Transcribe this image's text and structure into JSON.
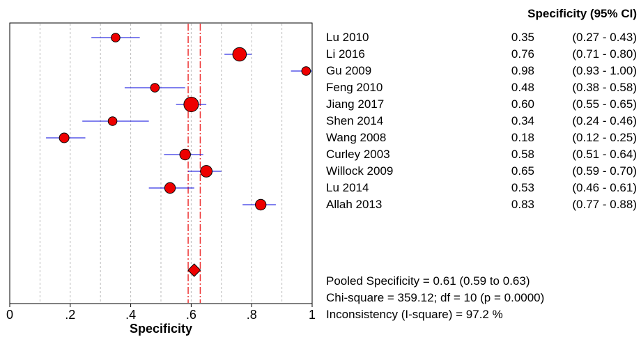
{
  "chart_data": {
    "type": "forest",
    "xlabel": "Specificity",
    "xlim": [
      0,
      1
    ],
    "xticks": [
      "0",
      ".2",
      ".4",
      ".6",
      ".8",
      "1"
    ],
    "header": "Specificity (95% CI)",
    "studies": [
      {
        "name": "Lu 2010",
        "est": 0.35,
        "lo": 0.27,
        "hi": 0.43,
        "est_text": "0.35",
        "ci_text": "(0.27 - 0.43)",
        "weight": 0.9
      },
      {
        "name": "Li 2016",
        "est": 0.76,
        "lo": 0.71,
        "hi": 0.8,
        "est_text": "0.76",
        "ci_text": "(0.71 - 0.80)",
        "weight": 1.4
      },
      {
        "name": "Gu 2009",
        "est": 0.98,
        "lo": 0.93,
        "hi": 1.0,
        "est_text": "0.98",
        "ci_text": "(0.93 - 1.00)",
        "weight": 0.9
      },
      {
        "name": "Feng 2010",
        "est": 0.48,
        "lo": 0.38,
        "hi": 0.58,
        "est_text": "0.48",
        "ci_text": "(0.38 - 0.58)",
        "weight": 0.9
      },
      {
        "name": "Jiang 2017",
        "est": 0.6,
        "lo": 0.55,
        "hi": 0.65,
        "est_text": "0.60",
        "ci_text": "(0.55 - 0.65)",
        "weight": 1.5
      },
      {
        "name": "Shen 2014",
        "est": 0.34,
        "lo": 0.24,
        "hi": 0.46,
        "est_text": "0.34",
        "ci_text": "(0.24 - 0.46)",
        "weight": 0.9
      },
      {
        "name": "Wang 2008",
        "est": 0.18,
        "lo": 0.12,
        "hi": 0.25,
        "est_text": "0.18",
        "ci_text": "(0.12 - 0.25)",
        "weight": 1.0
      },
      {
        "name": "Curley 2003",
        "est": 0.58,
        "lo": 0.51,
        "hi": 0.64,
        "est_text": "0.58",
        "ci_text": "(0.51 - 0.64)",
        "weight": 1.1
      },
      {
        "name": "Willock 2009",
        "est": 0.65,
        "lo": 0.59,
        "hi": 0.7,
        "est_text": "0.65",
        "ci_text": "(0.59 - 0.70)",
        "weight": 1.2
      },
      {
        "name": "Lu 2014",
        "est": 0.53,
        "lo": 0.46,
        "hi": 0.61,
        "est_text": "0.53",
        "ci_text": "(0.46 - 0.61)",
        "weight": 1.1
      },
      {
        "name": "Allah 2013",
        "est": 0.83,
        "lo": 0.77,
        "hi": 0.88,
        "est_text": "0.83",
        "ci_text": "(0.77 - 0.88)",
        "weight": 1.1
      }
    ],
    "pooled": {
      "est": 0.61,
      "lo": 0.59,
      "hi": 0.63
    },
    "stats": [
      "Pooled Specificity = 0.61 (0.59 to 0.63)",
      "Chi-square = 359.12; df =  10 (p = 0.0000)",
      "Inconsistency (I-square) = 97.2 %"
    ],
    "grid": true,
    "colors": {
      "marker": "#ee0000",
      "ci_line": "#0000dd",
      "pooled_line": "#ee3333",
      "grid": "#bbbbbb"
    }
  }
}
